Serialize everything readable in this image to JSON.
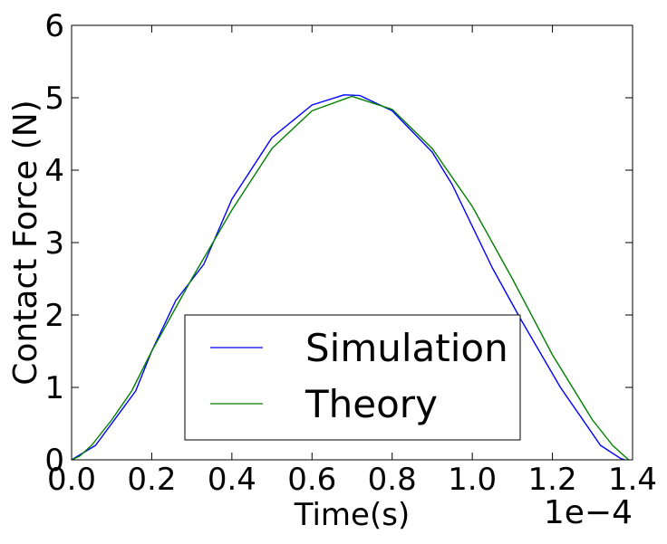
{
  "chart_data": {
    "type": "line",
    "title": "",
    "xlabel": "Time(s)",
    "ylabel": "Contact Force (N)",
    "x_offset_label": "1e−4",
    "xlim": [
      0.0,
      1.4
    ],
    "ylim": [
      0,
      6
    ],
    "xticks": [
      0.0,
      0.2,
      0.4,
      0.6,
      0.8,
      1.0,
      1.2,
      1.4
    ],
    "xtick_labels": [
      "0.0",
      "0.2",
      "0.4",
      "0.6",
      "0.8",
      "1.0",
      "1.2",
      "1.4"
    ],
    "yticks": [
      0,
      1,
      2,
      3,
      4,
      5,
      6
    ],
    "ytick_labels": [
      "0",
      "1",
      "2",
      "3",
      "4",
      "5",
      "6"
    ],
    "grid": false,
    "legend_position": "lower-center",
    "series": [
      {
        "name": "Simulation",
        "color": "#0000ff",
        "points": [
          [
            0.0,
            0.0
          ],
          [
            0.06,
            0.2
          ],
          [
            0.16,
            0.95
          ],
          [
            0.2,
            1.5
          ],
          [
            0.26,
            2.2
          ],
          [
            0.33,
            2.7
          ],
          [
            0.4,
            3.6
          ],
          [
            0.5,
            4.45
          ],
          [
            0.6,
            4.9
          ],
          [
            0.68,
            5.04
          ],
          [
            0.72,
            5.03
          ],
          [
            0.8,
            4.82
          ],
          [
            0.9,
            4.25
          ],
          [
            0.95,
            3.8
          ],
          [
            1.05,
            2.65
          ],
          [
            1.12,
            1.95
          ],
          [
            1.22,
            1.0
          ],
          [
            1.32,
            0.2
          ],
          [
            1.37,
            0.02
          ],
          [
            1.38,
            0.0
          ]
        ]
      },
      {
        "name": "Theory",
        "color": "#008000",
        "points": [
          [
            0.0,
            0.0
          ],
          [
            0.02,
            0.05
          ],
          [
            0.05,
            0.2
          ],
          [
            0.1,
            0.55
          ],
          [
            0.15,
            0.95
          ],
          [
            0.2,
            1.5
          ],
          [
            0.3,
            2.5
          ],
          [
            0.4,
            3.45
          ],
          [
            0.5,
            4.3
          ],
          [
            0.6,
            4.82
          ],
          [
            0.7,
            5.02
          ],
          [
            0.8,
            4.84
          ],
          [
            0.9,
            4.3
          ],
          [
            1.0,
            3.5
          ],
          [
            1.1,
            2.5
          ],
          [
            1.2,
            1.45
          ],
          [
            1.3,
            0.55
          ],
          [
            1.35,
            0.2
          ],
          [
            1.39,
            0.0
          ]
        ]
      }
    ]
  }
}
